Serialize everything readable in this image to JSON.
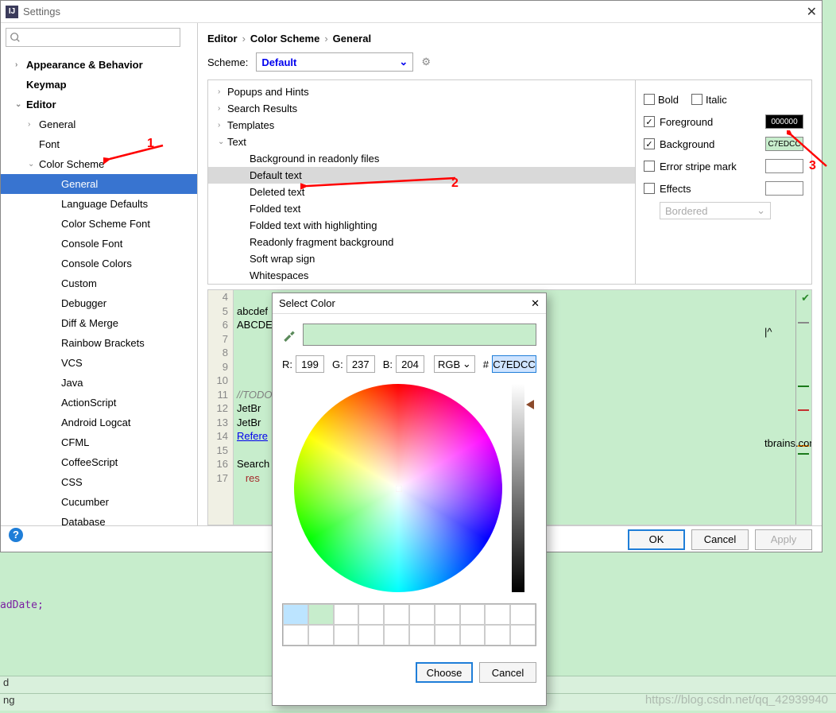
{
  "window": {
    "title": "Settings"
  },
  "sidebar": {
    "search_placeholder": "",
    "items": [
      {
        "label": "Appearance & Behavior",
        "exp": "›",
        "bold": true,
        "lvl": 0
      },
      {
        "label": "Keymap",
        "exp": "",
        "bold": true,
        "lvl": 0
      },
      {
        "label": "Editor",
        "exp": "⌄",
        "bold": true,
        "lvl": 0
      },
      {
        "label": "General",
        "exp": "›",
        "bold": false,
        "lvl": 1
      },
      {
        "label": "Font",
        "exp": "",
        "bold": false,
        "lvl": 1
      },
      {
        "label": "Color Scheme",
        "exp": "⌄",
        "bold": false,
        "lvl": 1
      },
      {
        "label": "General",
        "exp": "",
        "bold": false,
        "lvl": 3,
        "selected": true
      },
      {
        "label": "Language Defaults",
        "exp": "",
        "bold": false,
        "lvl": 3
      },
      {
        "label": "Color Scheme Font",
        "exp": "",
        "bold": false,
        "lvl": 3
      },
      {
        "label": "Console Font",
        "exp": "",
        "bold": false,
        "lvl": 3
      },
      {
        "label": "Console Colors",
        "exp": "",
        "bold": false,
        "lvl": 3
      },
      {
        "label": "Custom",
        "exp": "",
        "bold": false,
        "lvl": 3
      },
      {
        "label": "Debugger",
        "exp": "",
        "bold": false,
        "lvl": 3
      },
      {
        "label": "Diff & Merge",
        "exp": "",
        "bold": false,
        "lvl": 3
      },
      {
        "label": "Rainbow Brackets",
        "exp": "",
        "bold": false,
        "lvl": 3
      },
      {
        "label": "VCS",
        "exp": "",
        "bold": false,
        "lvl": 3
      },
      {
        "label": "Java",
        "exp": "",
        "bold": false,
        "lvl": 3
      },
      {
        "label": "ActionScript",
        "exp": "",
        "bold": false,
        "lvl": 3
      },
      {
        "label": "Android Logcat",
        "exp": "",
        "bold": false,
        "lvl": 3
      },
      {
        "label": "CFML",
        "exp": "",
        "bold": false,
        "lvl": 3
      },
      {
        "label": "CoffeeScript",
        "exp": "",
        "bold": false,
        "lvl": 3
      },
      {
        "label": "CSS",
        "exp": "",
        "bold": false,
        "lvl": 3
      },
      {
        "label": "Cucumber",
        "exp": "",
        "bold": false,
        "lvl": 3
      },
      {
        "label": "Database",
        "exp": "",
        "bold": false,
        "lvl": 3
      }
    ]
  },
  "breadcrumb": [
    "Editor",
    "Color Scheme",
    "General"
  ],
  "scheme": {
    "label": "Scheme:",
    "value": "Default"
  },
  "categories": [
    {
      "label": "Popups and Hints",
      "exp": "›",
      "lvl": 0
    },
    {
      "label": "Search Results",
      "exp": "›",
      "lvl": 0
    },
    {
      "label": "Templates",
      "exp": "›",
      "lvl": 0
    },
    {
      "label": "Text",
      "exp": "⌄",
      "lvl": 0
    },
    {
      "label": "Background in readonly files",
      "lvl": 1
    },
    {
      "label": "Default text",
      "lvl": 1,
      "selected": true
    },
    {
      "label": "Deleted text",
      "lvl": 1
    },
    {
      "label": "Folded text",
      "lvl": 1
    },
    {
      "label": "Folded text with highlighting",
      "lvl": 1
    },
    {
      "label": "Readonly fragment background",
      "lvl": 1
    },
    {
      "label": "Soft wrap sign",
      "lvl": 1
    },
    {
      "label": "Whitespaces",
      "lvl": 1
    }
  ],
  "attrs": {
    "bold": "Bold",
    "italic": "Italic",
    "foreground": "Foreground",
    "fg_val": "000000",
    "fg_color": "#000000",
    "fg_text": "#ffffff",
    "background": "Background",
    "bg_val": "C7EDCC",
    "bg_color": "#c7edcc",
    "error_stripe": "Error stripe mark",
    "effects": "Effects",
    "effects_type": "Bordered"
  },
  "preview": {
    "lines": [
      4,
      5,
      6,
      7,
      8,
      9,
      10,
      11,
      12,
      13,
      14,
      15,
      16,
      17
    ],
    "code": {
      "5": "abcdef",
      "6": "ABCDE",
      "11": "//TODO",
      "12": "JetBr",
      "13": "JetBr",
      "14": "Refere",
      "16": "Search",
      "17": "   res"
    },
    "link_tail": "tbrains.com/devnet",
    "caret": "|^"
  },
  "footer": {
    "ok": "OK",
    "cancel": "Cancel",
    "apply": "Apply"
  },
  "color_dialog": {
    "title": "Select Color",
    "r_label": "R:",
    "r": "199",
    "g_label": "G:",
    "g": "237",
    "b_label": "B:",
    "b": "204",
    "mode": "RGB",
    "hash": "#",
    "hex": "C7EDCC",
    "choose": "Choose",
    "cancel": "Cancel",
    "palette": [
      "#bce4ff",
      "#c7edcc",
      "",
      "",
      "",
      "",
      "",
      "",
      "",
      "",
      "",
      "",
      "",
      "",
      "",
      "",
      "",
      "",
      "",
      ""
    ]
  },
  "annotations": {
    "a1": "1",
    "a2": "2",
    "a3": "3"
  },
  "bg": {
    "code_frag": "adDate;",
    "row1": "d",
    "row2": "ng",
    "watermark": "https://blog.csdn.net/qq_42939940"
  }
}
